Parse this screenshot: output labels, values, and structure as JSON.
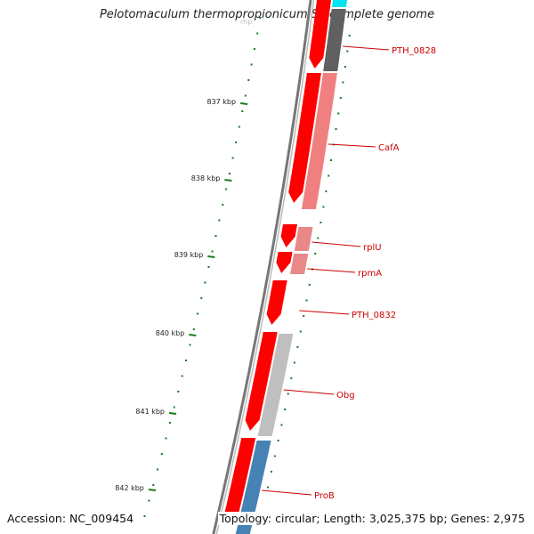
{
  "title": "Pelotomaculum thermopropionicum SI, complete genome",
  "footer": {
    "accession": "Accession: NC_009454",
    "topology": "Topology: circular; Length: 3,025,375 bp; Genes: 2,975"
  },
  "partial_label": "rhp",
  "scale": [
    {
      "label": "837 kbp"
    },
    {
      "label": "838 kbp"
    },
    {
      "label": "839 kbp"
    },
    {
      "label": "840 kbp"
    },
    {
      "label": "841 kbp"
    },
    {
      "label": "842 kbp"
    }
  ],
  "genes": [
    {
      "label": "PTH_0828"
    },
    {
      "label": "CafA"
    },
    {
      "label": "rplU"
    },
    {
      "label": "rpmA"
    },
    {
      "label": "PTH_0832"
    },
    {
      "label": "Obg"
    },
    {
      "label": "ProB"
    }
  ],
  "colors": {
    "cds": "#ff0000",
    "cafa": "#f08080",
    "ribosomal": "#e88888",
    "ptx_gray": "#606060",
    "obg_gray": "#bfbfbf",
    "prob_blue": "#4682b4",
    "cyan": "#00e5ee",
    "scale_green": "#1a7a1a",
    "backbone": "#888888",
    "label": "#cc0000"
  }
}
